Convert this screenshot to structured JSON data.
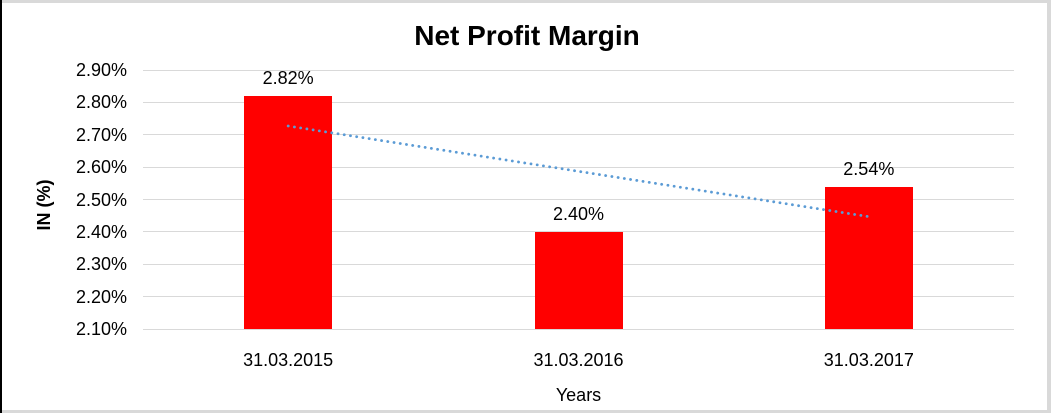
{
  "frame": {
    "border_color": "#d9d9d9",
    "left_edge_color": "#000000",
    "background": "#ffffff"
  },
  "chart_data": {
    "type": "bar",
    "title": "Net Profit Margin",
    "xlabel": "Years",
    "ylabel": "IN (%)",
    "categories": [
      "31.03.2015",
      "31.03.2016",
      "31.03.2017"
    ],
    "values": [
      2.82,
      2.4,
      2.54
    ],
    "data_labels": [
      "2.82%",
      "2.40%",
      "2.54%"
    ],
    "y_tick_labels": [
      "2.90%",
      "2.80%",
      "2.70%",
      "2.60%",
      "2.50%",
      "2.40%",
      "2.30%",
      "2.20%",
      "2.10%"
    ],
    "ylim": [
      2.1,
      2.9
    ],
    "y_tick_step": 0.1,
    "grid": true,
    "legend": "none",
    "plot_bg": "#ffffff",
    "bar_color": "#ff0000",
    "gridline_color": "#d9d9d9",
    "text_color": "#000000",
    "trendline": {
      "type": "linear",
      "style": "dotted",
      "color": "#5b9bd5",
      "start_value": 2.727,
      "end_value": 2.447
    }
  }
}
